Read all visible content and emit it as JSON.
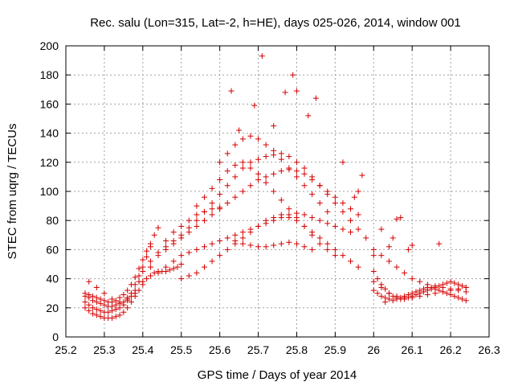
{
  "chart_data": {
    "type": "scatter",
    "title": "Rec. salu (Lon=315, Lat=-2, h=HE), days 025-026, 2014, window 001",
    "xlabel": "GPS time / Days of year 2014",
    "ylabel": "STEC from uqrg / TECUs",
    "xlim": [
      25.2,
      26.3
    ],
    "ylim": [
      0,
      200
    ],
    "xticks": [
      "25.2",
      "25.3",
      "25.4",
      "25.5",
      "25.6",
      "25.7",
      "25.8",
      "25.9",
      "26",
      "26.1",
      "26.2",
      "26.3"
    ],
    "yticks": [
      "0",
      "20",
      "40",
      "60",
      "80",
      "100",
      "120",
      "140",
      "160",
      "180",
      "200"
    ],
    "grid": true,
    "marker": "+",
    "color": "#d40000",
    "series": [
      {
        "x": [
          25.25,
          25.26,
          25.27,
          25.28,
          25.29,
          25.3,
          25.31,
          25.32,
          25.33,
          25.34,
          25.35,
          25.36,
          25.37,
          25.38,
          25.39,
          25.4,
          25.25,
          25.26,
          25.27,
          25.28,
          25.29,
          25.3,
          25.31,
          25.32,
          25.33,
          25.34,
          25.35,
          25.36,
          25.37,
          25.38,
          25.39,
          25.4,
          25.41,
          25.42,
          25.25,
          25.26,
          25.27,
          25.28,
          25.29,
          25.3,
          25.31,
          25.32,
          25.33,
          25.34,
          25.35,
          25.36,
          25.37,
          25.38,
          25.39,
          25.4,
          25.41,
          25.42,
          25.43,
          25.44,
          25.25,
          25.26,
          25.27,
          25.28,
          25.29,
          25.3,
          25.31,
          25.32,
          25.33,
          25.34,
          25.35,
          25.36,
          25.37,
          25.38,
          25.39,
          25.4,
          25.41,
          25.42,
          25.43,
          25.44,
          25.45,
          25.46,
          25.47,
          25.48,
          25.49,
          25.5,
          25.26,
          25.28,
          25.3,
          25.32,
          25.34,
          25.36,
          25.38,
          25.4,
          25.42,
          25.44,
          25.46,
          25.48,
          25.5,
          25.52,
          25.54,
          25.56,
          25.58,
          25.6,
          25.42,
          25.44,
          25.46,
          25.48,
          25.5,
          25.52,
          25.54,
          25.56,
          25.58,
          25.6,
          25.62,
          25.64,
          25.66,
          25.68,
          25.7,
          25.72,
          25.74,
          25.76,
          25.78,
          25.8,
          25.82,
          25.84,
          25.86,
          25.88,
          25.9,
          25.92,
          25.94,
          25.96,
          25.44,
          25.46,
          25.48,
          25.5,
          25.52,
          25.54,
          25.56,
          25.58,
          25.6,
          25.62,
          25.64,
          25.66,
          25.68,
          25.7,
          25.72,
          25.74,
          25.76,
          25.78,
          25.8,
          25.82,
          25.84,
          25.86,
          25.88,
          25.9,
          25.92,
          25.94,
          25.46,
          25.48,
          25.5,
          25.52,
          25.54,
          25.56,
          25.58,
          25.6,
          25.62,
          25.64,
          25.66,
          25.68,
          25.7,
          25.72,
          25.74,
          25.76,
          25.78,
          25.8,
          25.82,
          25.84,
          25.86,
          25.88,
          25.9,
          25.92,
          25.94,
          25.96,
          25.98,
          25.5,
          25.52,
          25.54,
          25.56,
          25.58,
          25.6,
          25.62,
          25.64,
          25.66,
          25.68,
          25.7,
          25.72,
          25.74,
          25.76,
          25.78,
          25.8,
          25.82,
          25.84,
          25.86,
          25.88,
          25.9,
          25.92,
          25.94,
          25.96,
          25.54,
          25.56,
          25.58,
          25.6,
          25.62,
          25.64,
          25.66,
          25.68,
          25.7,
          25.72,
          25.74,
          25.76,
          25.78,
          25.8,
          25.82,
          25.84,
          25.86,
          25.88,
          25.9,
          25.6,
          25.62,
          25.64,
          25.66,
          25.68,
          25.7,
          25.72,
          25.74,
          25.76,
          25.78,
          25.8,
          25.82,
          25.84,
          25.86,
          25.88,
          25.64,
          25.66,
          25.68,
          25.7,
          25.72,
          25.74,
          25.76,
          25.78,
          25.8,
          25.82,
          25.84,
          25.63,
          25.71,
          25.77,
          25.79,
          25.8,
          25.85,
          25.83,
          25.74,
          25.69,
          25.65,
          25.92,
          25.97,
          25.96,
          25.95,
          26.0,
          26.01,
          26.02,
          26.03,
          26.04,
          26.05,
          26.06,
          26.07,
          26.08,
          26.09,
          26.1,
          26.11,
          26.12,
          26.13,
          26.14,
          26.15,
          26.16,
          26.17,
          26.18,
          26.19,
          26.2,
          26.21,
          26.22,
          26.23,
          26.24,
          26.0,
          26.01,
          26.02,
          26.03,
          26.04,
          26.05,
          26.06,
          26.07,
          26.08,
          26.09,
          26.1,
          26.11,
          26.12,
          26.13,
          26.14,
          26.15,
          26.16,
          26.17,
          26.18,
          26.19,
          26.2,
          26.21,
          26.22,
          26.23,
          26.24,
          26.0,
          26.02,
          26.04,
          26.06,
          26.08,
          26.1,
          26.12,
          26.14,
          26.16,
          26.18,
          26.2,
          26.22,
          26.24,
          26.0,
          26.02,
          26.04,
          26.06,
          26.08,
          26.1,
          26.12,
          26.14,
          26.16,
          26.18,
          26.2,
          26.22,
          26.24,
          26.02,
          26.04,
          26.05,
          26.06,
          26.07,
          26.09,
          26.1,
          26.17,
          26.03,
          26.0
        ],
        "y": [
          24,
          22,
          20,
          19,
          18,
          17,
          17,
          18,
          19,
          20,
          22,
          25,
          28,
          32,
          38,
          45,
          28,
          27,
          25,
          24,
          23,
          22,
          21,
          21,
          22,
          23,
          24,
          27,
          30,
          36,
          42,
          48,
          55,
          62,
          30,
          29,
          28,
          27,
          26,
          25,
          24,
          24,
          25,
          27,
          29,
          32,
          36,
          41,
          47,
          53,
          59,
          64,
          70,
          75,
          20,
          18,
          16,
          15,
          14,
          13,
          13,
          13,
          14,
          15,
          17,
          20,
          24,
          28,
          32,
          36,
          40,
          42,
          44,
          45,
          45,
          45,
          46,
          47,
          48,
          50,
          38,
          34,
          30,
          26,
          24,
          26,
          30,
          38,
          48,
          58,
          66,
          72,
          76,
          80,
          84,
          86,
          88,
          89,
          52,
          56,
          60,
          64,
          68,
          72,
          76,
          80,
          84,
          88,
          92,
          96,
          100,
          104,
          108,
          110,
          112,
          114,
          115,
          114,
          112,
          108,
          104,
          100,
          96,
          92,
          88,
          84,
          44,
          48,
          52,
          56,
          58,
          60,
          62,
          64,
          66,
          68,
          70,
          72,
          74,
          76,
          78,
          80,
          82,
          84,
          85,
          84,
          82,
          80,
          78,
          76,
          74,
          72,
          62,
          66,
          70,
          75,
          80,
          86,
          92,
          98,
          104,
          110,
          116,
          120,
          122,
          124,
          125,
          126,
          124,
          120,
          116,
          110,
          104,
          98,
          92,
          86,
          80,
          74,
          68,
          40,
          42,
          44,
          48,
          52,
          56,
          60,
          64,
          68,
          72,
          76,
          80,
          82,
          84,
          82,
          80,
          76,
          72,
          68,
          64,
          60,
          56,
          52,
          48,
          90,
          96,
          102,
          108,
          114,
          118,
          120,
          116,
          112,
          106,
          100,
          94,
          88,
          82,
          76,
          70,
          64,
          60,
          56,
          120,
          126,
          132,
          136,
          138,
          136,
          132,
          128,
          122,
          116,
          110,
          104,
          98,
          92,
          86,
          66,
          64,
          63,
          62,
          62,
          63,
          64,
          65,
          64,
          62,
          60,
          169,
          193,
          168,
          180,
          169,
          164,
          152,
          145,
          159,
          142,
          120,
          111,
          100,
          96,
          45,
          40,
          36,
          33,
          30,
          28,
          27,
          26,
          26,
          27,
          28,
          29,
          30,
          31,
          32,
          33,
          34,
          35,
          36,
          37,
          38,
          37,
          36,
          35,
          34,
          32,
          30,
          28,
          27,
          26,
          25,
          26,
          27,
          28,
          29,
          30,
          31,
          32,
          33,
          34,
          34,
          33,
          32,
          31,
          30,
          29,
          28,
          27,
          26,
          25,
          60,
          56,
          52,
          48,
          44,
          40,
          38,
          36,
          35,
          34,
          33,
          32,
          31,
          38,
          34,
          30,
          28,
          27,
          27,
          28,
          29,
          30,
          31,
          32,
          33,
          34,
          74,
          62,
          68,
          81,
          82,
          60,
          63,
          64,
          24,
          56
        ]
      }
    ]
  }
}
